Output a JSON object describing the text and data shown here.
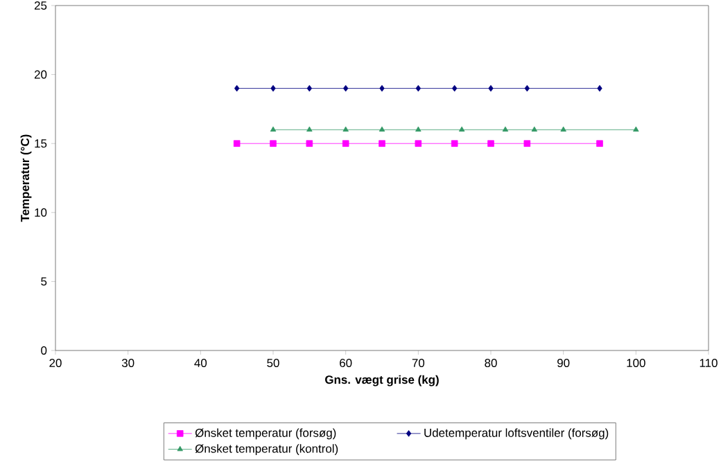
{
  "chart_data": {
    "type": "line",
    "xlabel": "Gns. vægt grise (kg)",
    "ylabel": "Temperatur (°C)",
    "xlim": [
      20,
      110
    ],
    "xticks": [
      20,
      30,
      40,
      50,
      60,
      70,
      80,
      90,
      100,
      110
    ],
    "ylim": [
      0,
      25
    ],
    "yticks": [
      0,
      5,
      10,
      15,
      20,
      25
    ],
    "legend": "bottom",
    "grid": false,
    "series": [
      {
        "name": "Ønsket temperatur  (forsøg)",
        "color": "#ff00ff",
        "marker": "square",
        "x": [
          45,
          50,
          55,
          60,
          65,
          70,
          75,
          80,
          85,
          95
        ],
        "values": [
          15,
          15,
          15,
          15,
          15,
          15,
          15,
          15,
          15,
          15
        ]
      },
      {
        "name": "Udetemperatur loftsventiler  (forsøg)",
        "color": "#000080",
        "marker": "diamond",
        "x": [
          45,
          50,
          55,
          60,
          65,
          70,
          75,
          80,
          85,
          95
        ],
        "values": [
          19,
          19,
          19,
          19,
          19,
          19,
          19,
          19,
          19,
          19
        ]
      },
      {
        "name": "Ønsket temperatur  (kontrol)",
        "color": "#339966",
        "marker": "triangle",
        "x": [
          50,
          55,
          60,
          65,
          70,
          76,
          82,
          86,
          90,
          100
        ],
        "values": [
          16,
          16,
          16,
          16,
          16,
          16,
          16,
          16,
          16,
          16
        ]
      }
    ]
  }
}
